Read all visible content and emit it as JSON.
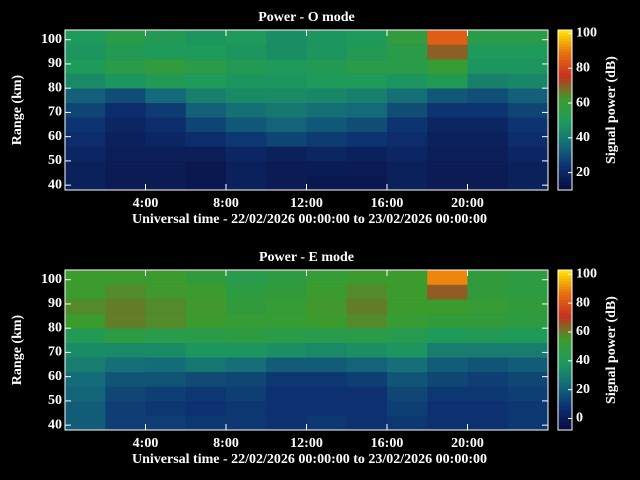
{
  "chart_data": [
    {
      "type": "heatmap",
      "title": "Power - O mode",
      "xlabel": "Universal time - 22/02/2026 00:00:00 to 23/02/2026 00:00:00",
      "ylabel": "Range (km)",
      "colorbar_label": "Signal power (dB)",
      "x_bins": [
        0,
        2,
        4,
        6,
        8,
        10,
        12,
        14,
        16,
        18,
        20,
        22,
        24
      ],
      "y_bins": [
        38,
        44,
        50,
        56,
        62,
        68,
        74,
        80,
        86,
        92,
        98,
        104
      ],
      "values": [
        [
          18,
          16,
          16,
          15,
          18,
          16,
          15,
          15,
          18,
          16,
          16,
          18
        ],
        [
          18,
          16,
          16,
          15,
          18,
          16,
          16,
          16,
          18,
          16,
          16,
          18
        ],
        [
          20,
          17,
          17,
          17,
          20,
          18,
          20,
          18,
          20,
          17,
          17,
          20
        ],
        [
          22,
          18,
          20,
          22,
          25,
          28,
          26,
          24,
          22,
          18,
          18,
          22
        ],
        [
          24,
          20,
          22,
          28,
          32,
          35,
          32,
          30,
          24,
          20,
          20,
          24
        ],
        [
          28,
          22,
          26,
          34,
          38,
          40,
          38,
          36,
          30,
          24,
          24,
          28
        ],
        [
          34,
          30,
          36,
          42,
          45,
          45,
          44,
          42,
          38,
          32,
          30,
          34
        ],
        [
          45,
          48,
          52,
          50,
          48,
          48,
          50,
          50,
          48,
          52,
          42,
          44
        ],
        [
          50,
          55,
          58,
          55,
          52,
          50,
          52,
          55,
          55,
          60,
          48,
          48
        ],
        [
          48,
          52,
          50,
          50,
          48,
          46,
          48,
          52,
          55,
          70,
          50,
          50
        ],
        [
          50,
          55,
          52,
          48,
          50,
          46,
          48,
          50,
          58,
          85,
          55,
          55
        ]
      ],
      "xlim": [
        0,
        24
      ],
      "xticks": [
        {
          "value": 4,
          "label": "4:00"
        },
        {
          "value": 8,
          "label": "8:00"
        },
        {
          "value": 12,
          "label": "12:00"
        },
        {
          "value": 16,
          "label": "16:00"
        },
        {
          "value": 20,
          "label": "20:00"
        }
      ],
      "ylim": [
        38,
        104
      ],
      "yticks": [
        40,
        50,
        60,
        70,
        80,
        90,
        100
      ],
      "clim": [
        10,
        102
      ],
      "cticks": [
        20,
        40,
        60,
        80,
        100
      ],
      "colorscale": [
        "#0a0a3c",
        "#0c2f70",
        "#146a7a",
        "#1d9a5c",
        "#3c9c2c",
        "#c83020",
        "#e87010",
        "#ffe800"
      ]
    },
    {
      "type": "heatmap",
      "title": "Power - E mode",
      "xlabel": "Universal time - 22/02/2026 00:00:00 to 23/02/2026 00:00:00",
      "ylabel": "Range (km)",
      "colorbar_label": "Signal power (dB)",
      "x_bins": [
        0,
        2,
        4,
        6,
        8,
        10,
        12,
        14,
        16,
        18,
        20,
        22,
        24
      ],
      "y_bins": [
        38,
        44,
        50,
        56,
        62,
        68,
        74,
        80,
        86,
        92,
        98,
        104
      ],
      "values": [
        [
          20,
          12,
          12,
          10,
          10,
          8,
          10,
          8,
          10,
          8,
          8,
          10
        ],
        [
          20,
          12,
          10,
          8,
          10,
          8,
          8,
          8,
          12,
          8,
          8,
          10
        ],
        [
          22,
          14,
          12,
          10,
          12,
          8,
          8,
          8,
          14,
          10,
          10,
          12
        ],
        [
          24,
          18,
          18,
          15,
          14,
          10,
          10,
          12,
          18,
          14,
          12,
          14
        ],
        [
          30,
          25,
          24,
          28,
          25,
          20,
          20,
          22,
          25,
          20,
          18,
          20
        ],
        [
          35,
          34,
          35,
          38,
          38,
          36,
          34,
          36,
          38,
          30,
          30,
          30
        ],
        [
          42,
          48,
          45,
          46,
          48,
          46,
          45,
          46,
          44,
          40,
          42,
          40
        ],
        [
          55,
          60,
          58,
          55,
          52,
          52,
          55,
          58,
          52,
          50,
          50,
          48
        ],
        [
          58,
          60,
          58,
          56,
          50,
          52,
          56,
          60,
          55,
          55,
          52,
          50
        ],
        [
          55,
          58,
          56,
          55,
          48,
          50,
          55,
          58,
          55,
          65,
          50,
          48
        ],
        [
          55,
          55,
          55,
          50,
          45,
          48,
          52,
          55,
          55,
          90,
          50,
          48
        ]
      ],
      "xlim": [
        0,
        24
      ],
      "xticks": [
        {
          "value": 4,
          "label": "4:00"
        },
        {
          "value": 8,
          "label": "8:00"
        },
        {
          "value": 12,
          "label": "12:00"
        },
        {
          "value": 16,
          "label": "16:00"
        },
        {
          "value": 20,
          "label": "20:00"
        }
      ],
      "ylim": [
        38,
        104
      ],
      "yticks": [
        40,
        50,
        60,
        70,
        80,
        90,
        100
      ],
      "clim": [
        -8,
        103
      ],
      "cticks": [
        0,
        20,
        40,
        60,
        80,
        100
      ],
      "colorscale": [
        "#0a0a3c",
        "#0c2f70",
        "#146a7a",
        "#1d9a5c",
        "#3c9c2c",
        "#c83020",
        "#e87010",
        "#ffe800"
      ]
    }
  ]
}
